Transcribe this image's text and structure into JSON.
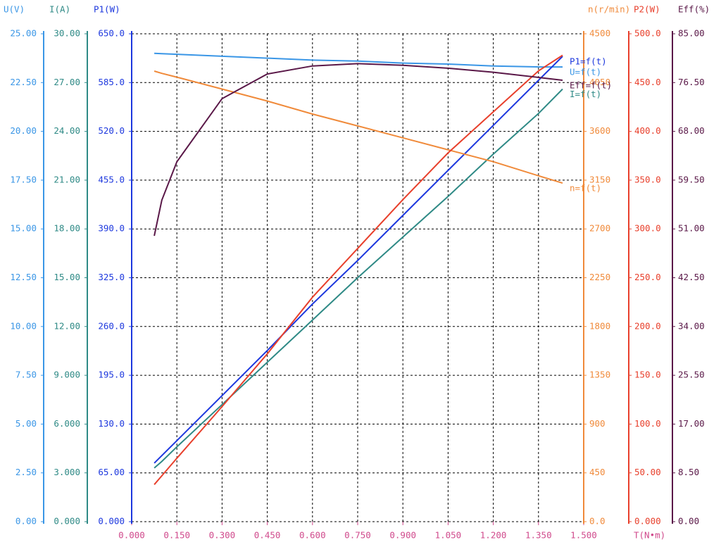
{
  "chart_data": {
    "type": "line",
    "x_label": "T(N•m)",
    "xlim": [
      0,
      1.5
    ],
    "xticks": [
      {
        "value": 0,
        "label": "0.000"
      },
      {
        "value": 0.15,
        "label": "0.150"
      },
      {
        "value": 0.3,
        "label": "0.300"
      },
      {
        "value": 0.45,
        "label": "0.450"
      },
      {
        "value": 0.6,
        "label": "0.600"
      },
      {
        "value": 0.75,
        "label": "0.750"
      },
      {
        "value": 0.9,
        "label": "0.900"
      },
      {
        "value": 1.05,
        "label": "1.050"
      },
      {
        "value": 1.2,
        "label": "1.200"
      },
      {
        "value": 1.35,
        "label": "1.350"
      },
      {
        "value": 1.5,
        "label": "1.500"
      }
    ],
    "x_color": "#d04a8c",
    "grid": true,
    "axes": [
      {
        "title": "U(V)",
        "color": "#3a96e6",
        "side": "left",
        "lim": [
          0,
          25
        ],
        "ticks": [
          {
            "value": 0,
            "label": "0.00"
          },
          {
            "value": 2.5,
            "label": "2.50"
          },
          {
            "value": 5,
            "label": "5.00"
          },
          {
            "value": 7.5,
            "label": "7.50"
          },
          {
            "value": 10,
            "label": "10.00"
          },
          {
            "value": 12.5,
            "label": "12.50"
          },
          {
            "value": 15,
            "label": "15.00"
          },
          {
            "value": 17.5,
            "label": "17.50"
          },
          {
            "value": 20,
            "label": "20.00"
          },
          {
            "value": 22.5,
            "label": "22.50"
          },
          {
            "value": 25,
            "label": "25.00"
          }
        ]
      },
      {
        "title": "I(A)",
        "color": "#2f8a86",
        "side": "left",
        "lim": [
          0,
          30
        ],
        "ticks": [
          {
            "value": 0,
            "label": "0.000"
          },
          {
            "value": 3,
            "label": "3.000"
          },
          {
            "value": 6,
            "label": "6.000"
          },
          {
            "value": 9,
            "label": "9.000"
          },
          {
            "value": 12,
            "label": "12.00"
          },
          {
            "value": 15,
            "label": "15.00"
          },
          {
            "value": 18,
            "label": "18.00"
          },
          {
            "value": 21,
            "label": "21.00"
          },
          {
            "value": 24,
            "label": "24.00"
          },
          {
            "value": 27,
            "label": "27.00"
          },
          {
            "value": 30,
            "label": "30.00"
          }
        ]
      },
      {
        "title": "P1(W)",
        "color": "#1d38de",
        "side": "left",
        "lim": [
          0,
          650
        ],
        "ticks": [
          {
            "value": 0,
            "label": "0.000"
          },
          {
            "value": 65,
            "label": "65.00"
          },
          {
            "value": 130,
            "label": "130.0"
          },
          {
            "value": 195,
            "label": "195.0"
          },
          {
            "value": 260,
            "label": "260.0"
          },
          {
            "value": 325,
            "label": "325.0"
          },
          {
            "value": 390,
            "label": "390.0"
          },
          {
            "value": 455,
            "label": "455.0"
          },
          {
            "value": 520,
            "label": "520.0"
          },
          {
            "value": 585,
            "label": "585.0"
          },
          {
            "value": 650,
            "label": "650.0"
          }
        ]
      },
      {
        "title": "n(r/min)",
        "color": "#f08a3a",
        "side": "right",
        "lim": [
          0,
          4500
        ],
        "ticks": [
          {
            "value": 0,
            "label": "0.0"
          },
          450,
          900,
          1350,
          1800,
          2250,
          2700,
          3150,
          3600,
          4050,
          4500
        ]
      },
      {
        "title": "P2(W)",
        "color": "#e8402c",
        "side": "right",
        "lim": [
          0,
          500
        ],
        "ticks": [
          {
            "value": 0,
            "label": "0.000"
          },
          {
            "value": 50,
            "label": "50.00"
          },
          {
            "value": 100,
            "label": "100.0"
          },
          {
            "value": 150,
            "label": "150.0"
          },
          {
            "value": 200,
            "label": "200.0"
          },
          {
            "value": 250,
            "label": "250.0"
          },
          {
            "value": 300,
            "label": "300.0"
          },
          {
            "value": 350,
            "label": "350.0"
          },
          {
            "value": 400,
            "label": "400.0"
          },
          {
            "value": 450,
            "label": "450.0"
          },
          {
            "value": 500,
            "label": "500.0"
          }
        ]
      },
      {
        "title": "Eff(%)",
        "color": "#5a1848",
        "side": "right",
        "lim": [
          0,
          85
        ],
        "ticks": [
          {
            "value": 0,
            "label": "0.00"
          },
          {
            "value": 8.5,
            "label": "8.50"
          },
          {
            "value": 17,
            "label": "17.00"
          },
          {
            "value": 25.5,
            "label": "25.50"
          },
          {
            "value": 34,
            "label": "34.00"
          },
          {
            "value": 42.5,
            "label": "42.50"
          },
          {
            "value": 51,
            "label": "51.00"
          },
          {
            "value": 59.5,
            "label": "59.50"
          },
          {
            "value": 68,
            "label": "68.00"
          },
          {
            "value": 76.5,
            "label": "76.50"
          },
          {
            "value": 85,
            "label": "85.00"
          }
        ]
      }
    ],
    "x": [
      0.075,
      0.1,
      0.15,
      0.3,
      0.45,
      0.6,
      0.75,
      0.9,
      1.05,
      1.2,
      1.35,
      1.43
    ],
    "series": [
      {
        "name": "U=f(t)",
        "axis": 0,
        "color": "#3a96e6",
        "values": [
          24.0,
          23.98,
          23.95,
          23.85,
          23.75,
          23.65,
          23.6,
          23.5,
          23.45,
          23.35,
          23.3,
          23.3
        ]
      },
      {
        "name": "I=f(t)",
        "axis": 1,
        "color": "#2f8a86",
        "values": [
          3.3,
          3.7,
          4.6,
          7.2,
          9.8,
          12.4,
          15.0,
          17.5,
          20.0,
          22.6,
          25.1,
          26.6
        ]
      },
      {
        "name": "P1=f(t)",
        "axis": 2,
        "color": "#1d38de",
        "values": [
          78,
          88,
          108,
          168,
          228,
          290,
          348,
          408,
          468,
          528,
          588,
          620
        ]
      },
      {
        "name": "n=f(t)",
        "axis": 3,
        "color": "#f08a3a",
        "values": [
          4156,
          4135,
          4100,
          3990,
          3880,
          3760,
          3650,
          3540,
          3430,
          3320,
          3190,
          3123
        ]
      },
      {
        "axis": 4,
        "color": "#e8402c",
        "values": [
          38,
          47,
          65,
          118,
          172,
          230,
          280,
          330,
          378,
          420,
          462,
          478
        ]
      },
      {
        "name": "Eff=f(t)",
        "axis": 5,
        "color": "#5a1848",
        "values": [
          49.8,
          56,
          62.7,
          73.7,
          78,
          79.4,
          79.8,
          79.5,
          79,
          78.3,
          77.4,
          76.9
        ]
      }
    ]
  }
}
